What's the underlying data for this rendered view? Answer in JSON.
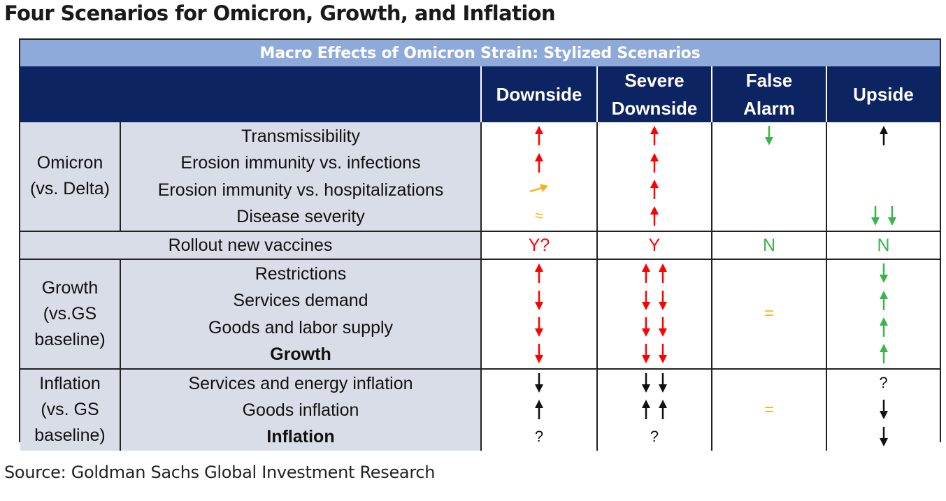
{
  "title": "Four Scenarios for Omicron, Growth, and Inflation",
  "table": {
    "supertitle": "Macro Effects of Omicron Strain: Stylized Scenarios",
    "columns": [
      {
        "line1": "Downside",
        "line2": ""
      },
      {
        "line1": "Severe",
        "line2": "Downside"
      },
      {
        "line1": "False",
        "line2": "Alarm"
      },
      {
        "line1": "Upside",
        "line2": ""
      }
    ],
    "groups": [
      {
        "label_lines": [
          "Omicron",
          "(vs. Delta)"
        ],
        "rows": [
          {
            "label": "Transmissibility"
          },
          {
            "label": "Erosion immunity vs. infections"
          },
          {
            "label": "Erosion immunity vs. hospitalizations"
          },
          {
            "label": "Disease severity"
          }
        ]
      },
      {
        "label_lines": [],
        "rows": [
          {
            "label": "Rollout new vaccines"
          }
        ]
      },
      {
        "label_lines": [
          "Growth",
          "(vs.GS",
          "baseline)"
        ],
        "rows": [
          {
            "label": "Restrictions"
          },
          {
            "label": "Services demand"
          },
          {
            "label": "Goods and labor supply"
          },
          {
            "label": "Growth"
          }
        ]
      },
      {
        "label_lines": [
          "Inflation",
          "(vs. GS",
          "baseline)"
        ],
        "rows": [
          {
            "label": "Services and energy inflation"
          },
          {
            "label": "Goods inflation"
          },
          {
            "label": "Inflation"
          }
        ]
      }
    ],
    "vaccine_values": [
      "Y?",
      "Y",
      "N",
      "N"
    ],
    "symbols": {
      "approx": "≈",
      "equal": "=",
      "question": "?"
    },
    "colors": {
      "red": "#ff0000",
      "green": "#3cb44b",
      "black": "#111111",
      "amber": "#f5b324",
      "header_navy": "#0c2461",
      "header_light": "#8eaadb",
      "label_bg": "#d9dde8"
    },
    "indicators": {
      "omicron": {
        "downside": [
          [
            "up-red"
          ],
          [
            "up-red"
          ],
          [
            "right-amber"
          ],
          [
            "approx-amber"
          ]
        ],
        "severe": [
          [
            "up-red"
          ],
          [
            "up-red"
          ],
          [
            "up-red"
          ],
          [
            "up-red"
          ]
        ],
        "false_alarm": [
          [
            "down-green"
          ],
          [],
          [],
          []
        ],
        "upside": [
          [
            "up-black"
          ],
          [],
          [],
          [
            "down-green",
            "down-green"
          ]
        ]
      },
      "growth": {
        "downside": [
          [
            "up-red"
          ],
          [
            "down-red"
          ],
          [
            "down-red"
          ],
          [
            "down-red"
          ]
        ],
        "severe": [
          [
            "up-red",
            "up-red"
          ],
          [
            "down-red",
            "down-red"
          ],
          [
            "down-red",
            "down-red"
          ],
          [
            "down-red",
            "down-red"
          ]
        ],
        "false_alarm": "equal-amber",
        "upside": [
          [
            "down-green"
          ],
          [
            "up-green"
          ],
          [
            "up-green"
          ],
          [
            "up-green"
          ]
        ]
      },
      "inflation": {
        "downside": [
          [
            "down-black"
          ],
          [
            "up-black"
          ],
          [
            "question"
          ]
        ],
        "severe": [
          [
            "down-black",
            "down-black"
          ],
          [
            "up-black",
            "up-black"
          ],
          [
            "question"
          ]
        ],
        "false_alarm": "equal-amber",
        "upside": [
          [
            "question"
          ],
          [
            "down-black"
          ],
          [
            "down-black"
          ]
        ]
      }
    }
  },
  "source": "Source: Goldman Sachs Global Investment Research"
}
